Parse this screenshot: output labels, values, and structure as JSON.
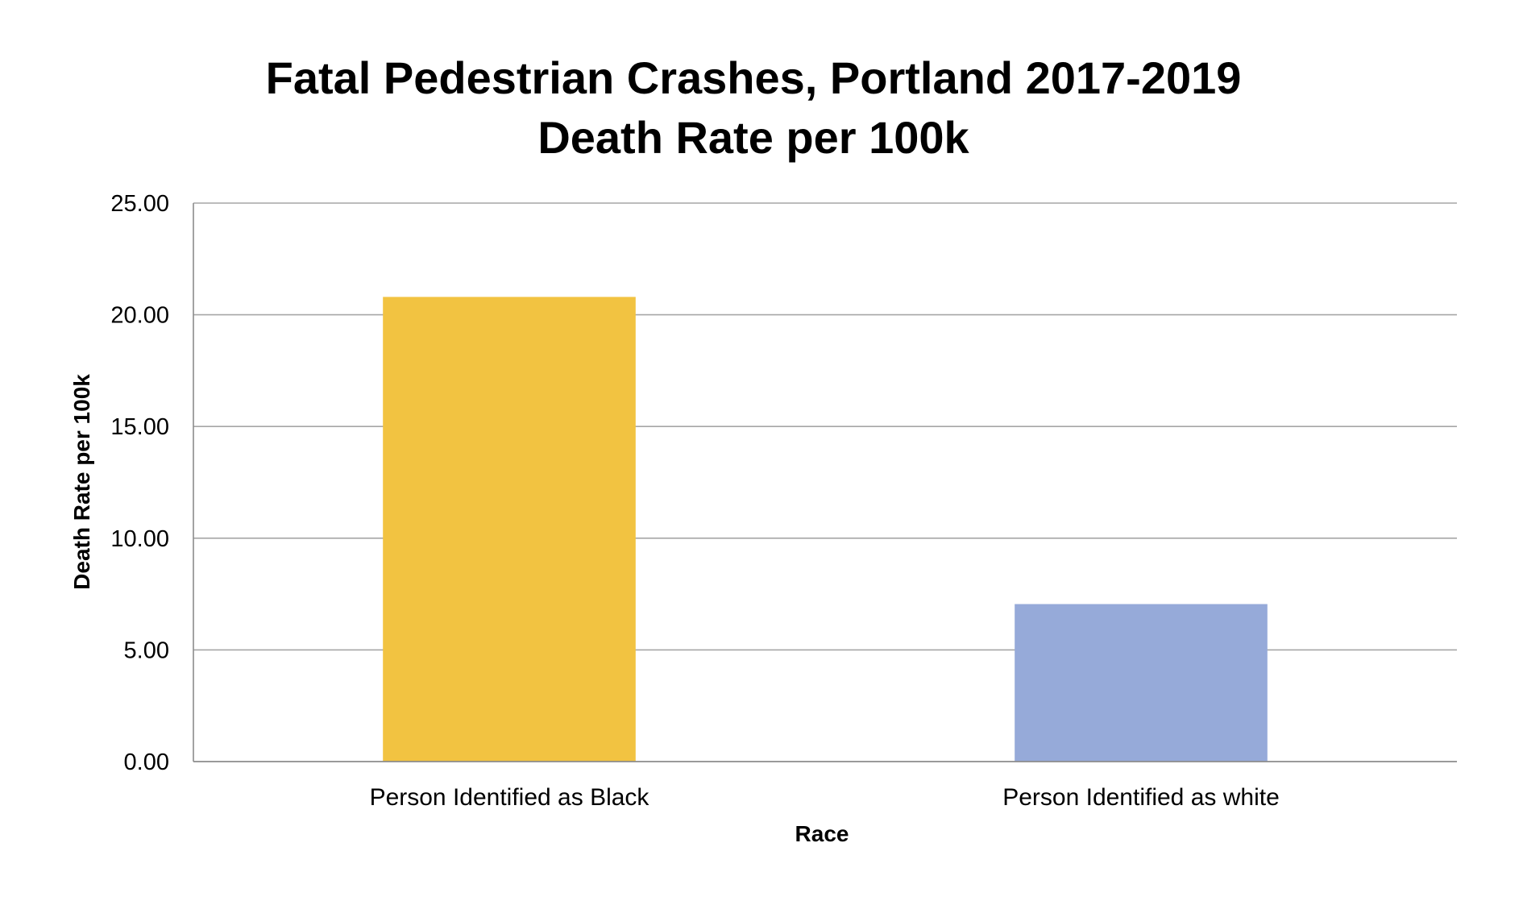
{
  "chart_data": {
    "type": "bar",
    "title": [
      "Fatal Pedestrian Crashes, Portland 2017-2019",
      "Death Rate per 100k"
    ],
    "xlabel": "Race",
    "ylabel": "Death Rate per 100k",
    "categories": [
      "Person Identified as Black",
      "Person Identified as white"
    ],
    "values": [
      20.8,
      7.05
    ],
    "bar_colors": [
      "#F2C341",
      "#96AAD9"
    ],
    "ylim": [
      0,
      25
    ],
    "yticks": [
      0,
      5,
      10,
      15,
      20,
      25
    ],
    "ytick_labels": [
      "0.00",
      "5.00",
      "10.00",
      "15.00",
      "20.00",
      "25.00"
    ],
    "grid": true,
    "gridline_color": "#A6A6A6",
    "axis_color": "#8C8C8C",
    "legend": "none"
  }
}
